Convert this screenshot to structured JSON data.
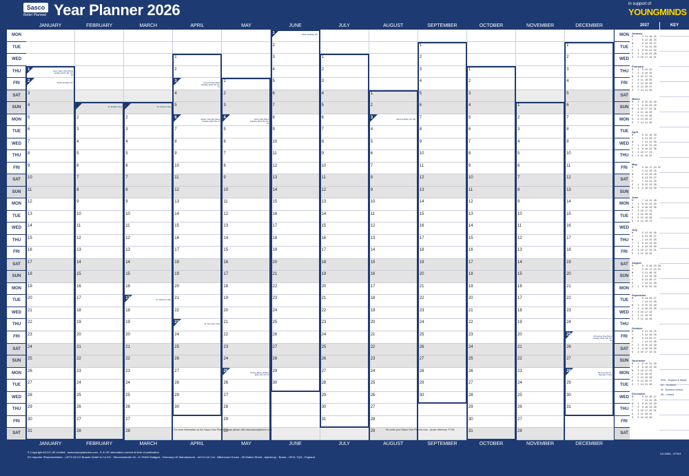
{
  "header": {
    "logo": "Sasco",
    "logo_sub": "Better Planned",
    "title": "Year Planner 2026",
    "support_text": "in support of",
    "charity": "YOUNGMINDS"
  },
  "months": [
    "JANUARY",
    "FEBRUARY",
    "MARCH",
    "APRIL",
    "MAY",
    "JUNE",
    "JULY",
    "AUGUST",
    "SEPTEMBER",
    "OCTOBER",
    "NOVEMBER",
    "DECEMBER"
  ],
  "start_offsets": [
    3,
    6,
    6,
    2,
    4,
    0,
    2,
    5,
    1,
    3,
    6,
    1
  ],
  "month_lengths": [
    31,
    28,
    31,
    30,
    31,
    30,
    31,
    31,
    30,
    31,
    30,
    31
  ],
  "day_labels": [
    "MON",
    "TUE",
    "WED",
    "THU",
    "FRI",
    "SAT",
    "SUN"
  ],
  "holidays": {
    "0-1": "New Year's Day Bank Holiday ENG WL SC NI",
    "0-2": "Bank Holiday SC",
    "1-1": "St. Brigid's Day",
    "2-1": "St. David's Day",
    "3-3": "Good Friday Bank Holiday ENG WL SC NI",
    "3-6": "Easter Monday Bank Holiday ENG WL NI",
    "4-4": "Early May Bank Holiday ENG WL SC NI",
    "4-25": "Spring Bank Holiday ENG WL SC NI",
    "5-1": "Bank Holiday IRL",
    "7-3": "Bank Holiday SC IRL",
    "7-31": "Summer Bank Holiday ENG WL NI",
    "11-25": "Christmas Day Bank Holiday ENG WL SC NI",
    "11-28": "Boxing Day St. Stephen's Day",
    "2-17": "St. Patrick's Day",
    "3-23": "St. George's Day",
    "10-30": "St. Andrew's Day"
  },
  "right_panel": {
    "year": "2027",
    "key": "KEY",
    "months": [
      "January",
      "February",
      "March",
      "April",
      "May",
      "June",
      "July",
      "August",
      "September",
      "October",
      "November",
      "December"
    ],
    "key_items": [
      "ENG - England & Wales",
      "SC - Scotland",
      "NI - Northern Ireland",
      "IRL - Ireland"
    ],
    "code": "UV-9356 - 97919"
  },
  "notes": {
    "march_note": "For more information on the Sasco Year Planner range please visit www.sascoplanners.com",
    "aug_note": "Re-order your Sasco Year Planner now - Quote reference 'PY26'"
  },
  "footer": {
    "line1": "© Copyright ACCO UK Limited - www.sascoplanners.com - E & OE information correct at time of publication",
    "line2": "EU Importer /Representative - LEITZ ACCO Brands GmbH & Co KG - Siemensstraße 64 - D-70469 Stuttgart - Germany   UK Manufacturer - ACCO UK Ltd - Millennium House - 65 Walton Street - Aylesbury - Bucks - HP21 7QG - England"
  },
  "colors": {
    "brand": "#1e3a72",
    "weekend": "#e3e3e3",
    "accent": "#ffd600"
  }
}
